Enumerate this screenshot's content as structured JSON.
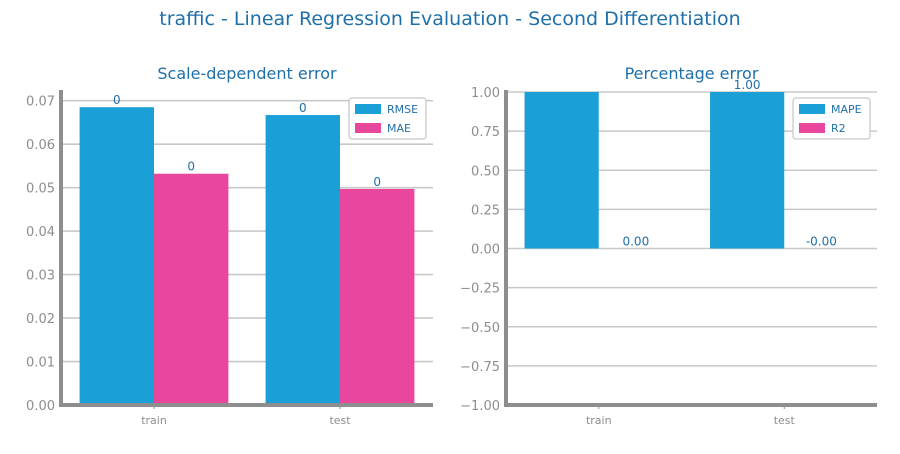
{
  "figure_title": "traffic - Linear Regression Evaluation - Second Differentiation",
  "colors": {
    "title": "#1f6fa8",
    "tick": "#8e8e8e",
    "axis": "#8e8e8e",
    "grid": "#c8c8c8"
  },
  "chart_data": [
    {
      "type": "bar",
      "title": "Scale-dependent error",
      "categories": [
        "train",
        "test"
      ],
      "series": [
        {
          "name": "RMSE",
          "color": "#1a9fd6",
          "values": [
            0.0685,
            0.0667
          ],
          "labels": [
            "0",
            "0"
          ]
        },
        {
          "name": "MAE",
          "color": "#e8479d",
          "values": [
            0.0532,
            0.0497
          ],
          "labels": [
            "0",
            "0"
          ]
        }
      ],
      "ylim": [
        0,
        0.072
      ],
      "yticks": [
        0,
        0.01,
        0.02,
        0.03,
        0.04,
        0.05,
        0.06,
        0.07
      ],
      "ytick_labels": [
        "0.00",
        "0.01",
        "0.02",
        "0.03",
        "0.04",
        "0.05",
        "0.06",
        "0.07"
      ],
      "grid": true,
      "legend_position": "top-right"
    },
    {
      "type": "bar",
      "title": "Percentage error",
      "categories": [
        "train",
        "test"
      ],
      "series": [
        {
          "name": "MAPE",
          "color": "#1a9fd6",
          "values": [
            1.0,
            1.0
          ],
          "labels": [
            "",
            "1.00"
          ]
        },
        {
          "name": "R2",
          "color": "#e8479d",
          "values": [
            0.0,
            -0.0
          ],
          "labels": [
            "0.00",
            "-0.00"
          ]
        }
      ],
      "ylim": [
        -1.0,
        1.0
      ],
      "yticks": [
        -1.0,
        -0.75,
        -0.5,
        -0.25,
        0.0,
        0.25,
        0.5,
        0.75,
        1.0
      ],
      "ytick_labels": [
        "−1.00",
        "−0.75",
        "−0.50",
        "−0.25",
        "0.00",
        "0.25",
        "0.50",
        "0.75",
        "1.00"
      ],
      "grid": true,
      "legend_position": "top-right"
    }
  ]
}
